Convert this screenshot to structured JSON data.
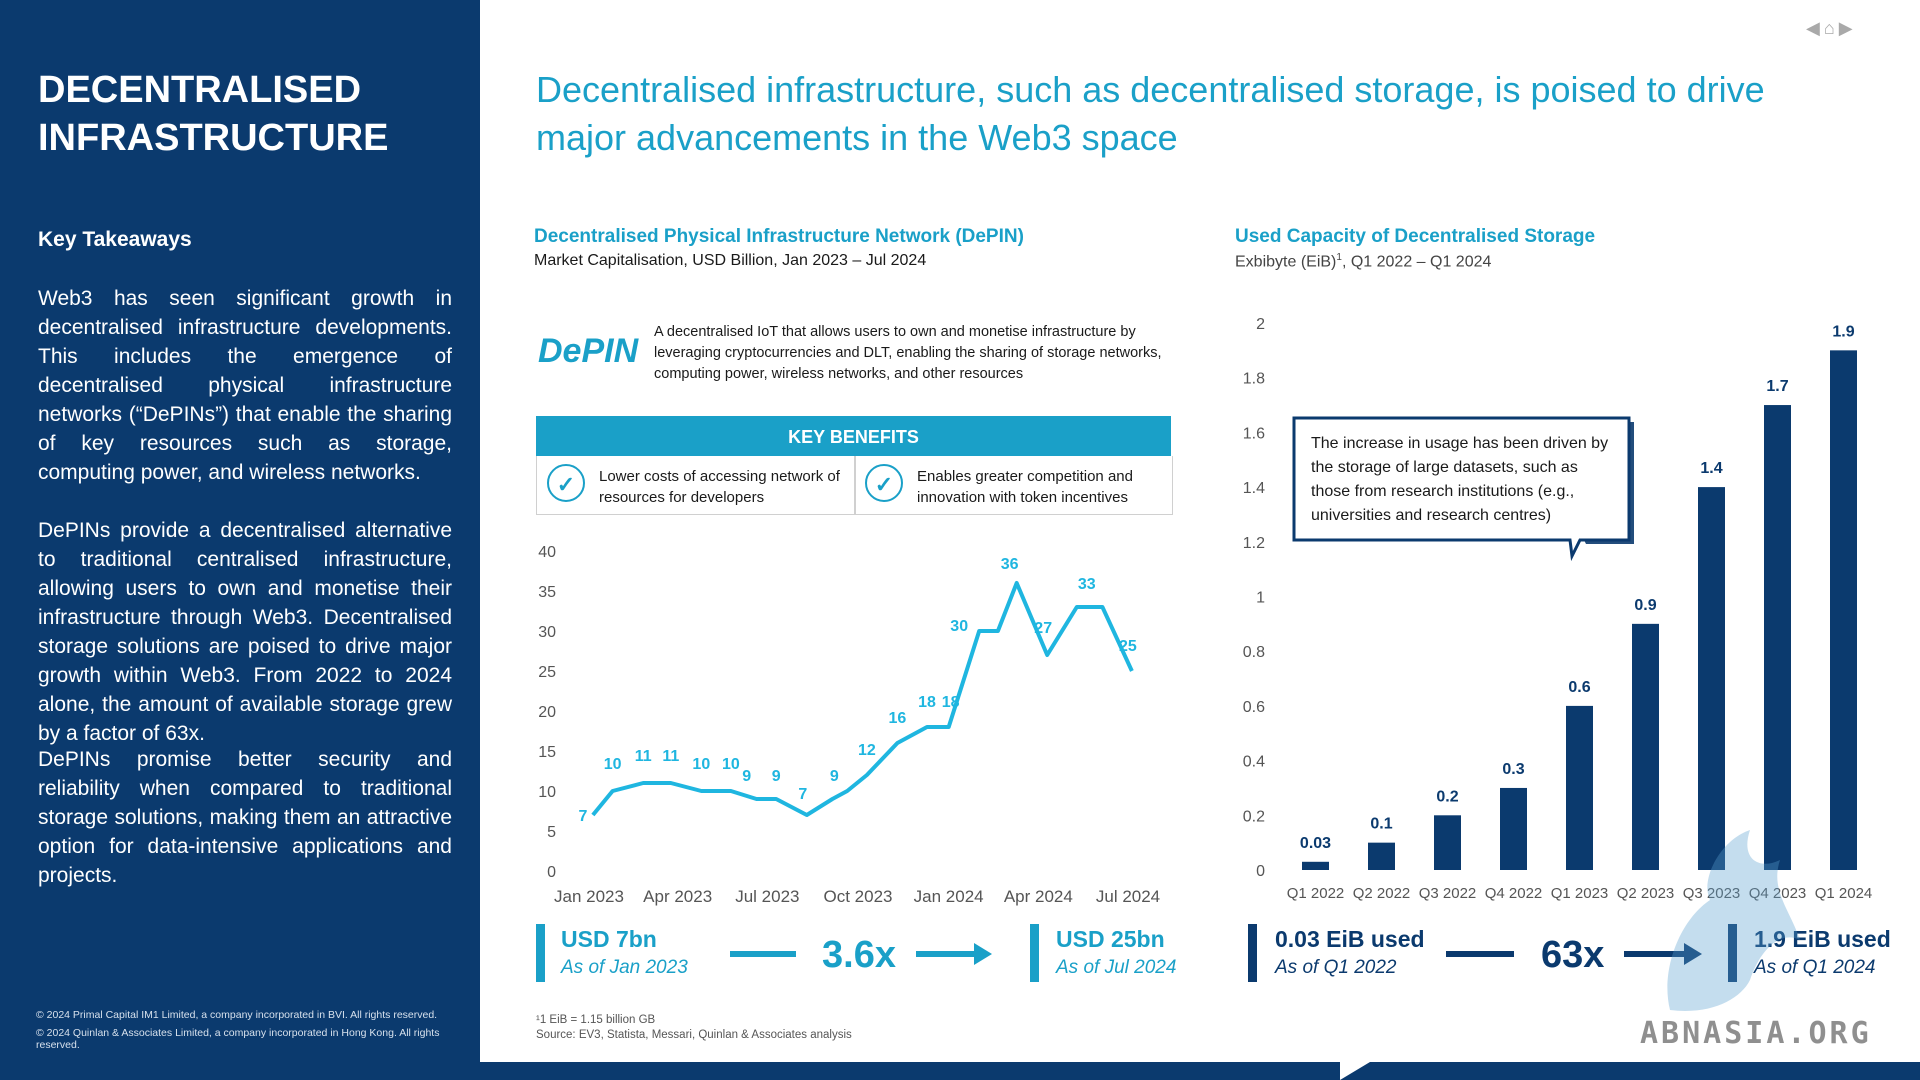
{
  "sidebar": {
    "title_line1": "DECENTRALISED",
    "title_line2": "INFRASTRUCTURE",
    "key_takeaways_heading": "Key Takeaways",
    "para1": "Web3 has seen significant growth in decentralised infrastructure developments. This includes the emergence of decentralised physical infrastructure networks (“DePINs”) that enable the sharing of key resources such as storage, computing power, and wireless networks.",
    "para2": "DePINs provide a decentralised alternative to traditional centralised infrastructure, allowing users to own and monetise their infrastructure through Web3. Decentralised storage solutions are poised to drive major growth within Web3. From 2022 to 2024 alone, the amount of available storage grew by a factor of 63x.",
    "para3": "DePINs promise better security and reliability when compared to traditional storage solutions, making them an attractive option for data-intensive applications and projects.",
    "copyright1": "© 2024 Primal Capital IM1 Limited, a company incorporated in BVI. All rights reserved.",
    "copyright2": "© 2024 Quinlan & Associates Limited, a company incorporated in Hong Kong. All rights reserved."
  },
  "nav": {
    "icons": [
      "triangle-left-icon",
      "home-icon",
      "triangle-right-icon"
    ]
  },
  "main_title": "Decentralised infrastructure, such as decentralised storage, is poised to drive major advancements in the Web3 space",
  "left_panel": {
    "title": "Decentralised Physical Infrastructure Network (DePIN)",
    "subtitle": "Market Capitalisation, USD Billion, Jan 2023 – Jul 2024",
    "logo_text": "DePIN",
    "description": "A decentralised IoT that allows users to own and monetise infrastructure by leveraging cryptocurrencies and DLT, enabling the sharing of storage networks, computing power, wireless networks, and other resources",
    "key_benefits_heading": "KEY BENEFITS",
    "benefits": [
      {
        "icon": "check-circle-icon",
        "text": "Lower costs of accessing network of resources for developers"
      },
      {
        "icon": "check-circle-icon",
        "text": "Enables greater competition and innovation with token incentives"
      }
    ],
    "stat_from": {
      "value": "USD 7bn",
      "sub": "As of Jan 2023"
    },
    "multiplier": "3.6x",
    "stat_to": {
      "value": "USD 25bn",
      "sub": "As of Jul 2024"
    }
  },
  "right_panel": {
    "title": "Used Capacity of Decentralised Storage",
    "subtitle_main": "Exbibyte (EiB)",
    "subtitle_sup": "1",
    "subtitle_rest": ", Q1 2022 – Q1 2024",
    "callout": "The increase in usage has been driven by the storage of large datasets, such as those from research institutions (e.g., universities and research centres)",
    "stat_from": {
      "value": "0.03 EiB used",
      "sub": "As of Q1 2022"
    },
    "multiplier": "63x",
    "stat_to": {
      "value": "1.9 EiB used",
      "sub": "As of Q1 2024"
    }
  },
  "footnote": {
    "line1": "¹1 EiB = 1.15 billion GB",
    "line2": "Source: EV3, Statista, Messari, Quinlan & Associates analysis"
  },
  "watermark": "ABNASIA.ORG",
  "colors": {
    "navy": "#0b3a6e",
    "cyan": "#1aa0c8",
    "bar": "#0b3a6e"
  },
  "chart_data": [
    {
      "type": "line",
      "title": "Decentralised Physical Infrastructure Network (DePIN)",
      "subtitle": "Market Capitalisation, USD Billion, Jan 2023 – Jul 2024",
      "x_tick_labels": [
        "Jan 2023",
        "Apr 2023",
        "Jul 2023",
        "Oct 2023",
        "Jan 2024",
        "Apr 2024",
        "Jul 2024"
      ],
      "y_ticks": [
        0,
        5,
        10,
        15,
        20,
        25,
        30,
        35,
        40
      ],
      "ylim": [
        0,
        40
      ],
      "x": [
        "2023-01-05",
        "2023-01-25",
        "2023-02-25",
        "2023-03-25",
        "2023-04-25",
        "2023-05-25",
        "2023-06-20",
        "2023-07-10",
        "2023-08-10",
        "2023-09-05",
        "2023-09-20",
        "2023-10-10",
        "2023-11-10",
        "2023-12-10",
        "2024-01-01",
        "2024-02-01",
        "2024-02-20",
        "2024-03-10",
        "2024-04-10",
        "2024-05-10",
        "2024-06-05",
        "2024-07-05"
      ],
      "values": [
        7,
        10,
        11,
        11,
        10,
        10,
        9,
        9,
        7,
        9,
        10,
        12,
        16,
        18,
        18,
        30,
        30,
        36,
        27,
        33,
        33,
        25
      ],
      "data_labels": [
        {
          "x": "2023-01-05",
          "y": 7,
          "text": "7"
        },
        {
          "x": "2023-01-25",
          "y": 10,
          "text": "10"
        },
        {
          "x": "2023-02-25",
          "y": 11,
          "text": "11"
        },
        {
          "x": "2023-03-25",
          "y": 11,
          "text": "11"
        },
        {
          "x": "2023-04-25",
          "y": 10,
          "text": "10"
        },
        {
          "x": "2023-05-25",
          "y": 10,
          "text": "10"
        },
        {
          "x": "2023-06-10",
          "y": 9,
          "text": "9"
        },
        {
          "x": "2023-07-10",
          "y": 9,
          "text": "9"
        },
        {
          "x": "2023-08-10",
          "y": 7,
          "text": "7"
        },
        {
          "x": "2023-09-05",
          "y": 9,
          "text": "9"
        },
        {
          "x": "2023-10-10",
          "y": 12,
          "text": "12"
        },
        {
          "x": "2023-11-10",
          "y": 16,
          "text": "16"
        },
        {
          "x": "2023-12-10",
          "y": 18,
          "text": "18"
        },
        {
          "x": "2024-01-01",
          "y": 18,
          "text": "18"
        },
        {
          "x": "2024-02-01",
          "y": 30,
          "text": "30"
        },
        {
          "x": "2024-03-10",
          "y": 36,
          "text": "36"
        },
        {
          "x": "2024-04-10",
          "y": 27,
          "text": "27"
        },
        {
          "x": "2024-05-10",
          "y": 33,
          "text": "33"
        },
        {
          "x": "2024-07-05",
          "y": 25,
          "text": "25"
        }
      ],
      "color": "#1fb6e0",
      "grid": false
    },
    {
      "type": "bar",
      "title": "Used Capacity of Decentralised Storage",
      "subtitle": "Exbibyte (EiB)1, Q1 2022 – Q1 2024",
      "categories": [
        "Q1 2022",
        "Q2 2022",
        "Q3 2022",
        "Q4 2022",
        "Q1 2023",
        "Q2 2023",
        "Q3 2023",
        "Q4 2023",
        "Q1 2024"
      ],
      "values": [
        0.03,
        0.1,
        0.2,
        0.3,
        0.6,
        0.9,
        1.4,
        1.7,
        1.9
      ],
      "value_labels": [
        "0.03",
        "0.1",
        "0.2",
        "0.3",
        "0.6",
        "0.9",
        "1.4",
        "1.7",
        "1.9"
      ],
      "y_ticks": [
        "0",
        "0.2",
        "0.4",
        "0.6",
        "0.8",
        "1",
        "1.2",
        "1.4",
        "1.6",
        "1.8",
        "2"
      ],
      "ylim": [
        0,
        2
      ],
      "color": "#0b3a6e",
      "grid": false
    }
  ]
}
